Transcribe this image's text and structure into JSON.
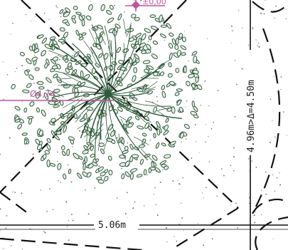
{
  "plan": {
    "elevation_tag": "±0,00",
    "tree_diameter_tag": "Ø4,74",
    "width_dimension": "5.06m",
    "height_dimension": "4.96m>Δ=4.50m"
  },
  "colors": {
    "tree": "#2f5a3a",
    "leaf_fill": "#e8efe6",
    "annotation": "#c0559a",
    "linework": "#111111",
    "paper": "#ffffff"
  }
}
